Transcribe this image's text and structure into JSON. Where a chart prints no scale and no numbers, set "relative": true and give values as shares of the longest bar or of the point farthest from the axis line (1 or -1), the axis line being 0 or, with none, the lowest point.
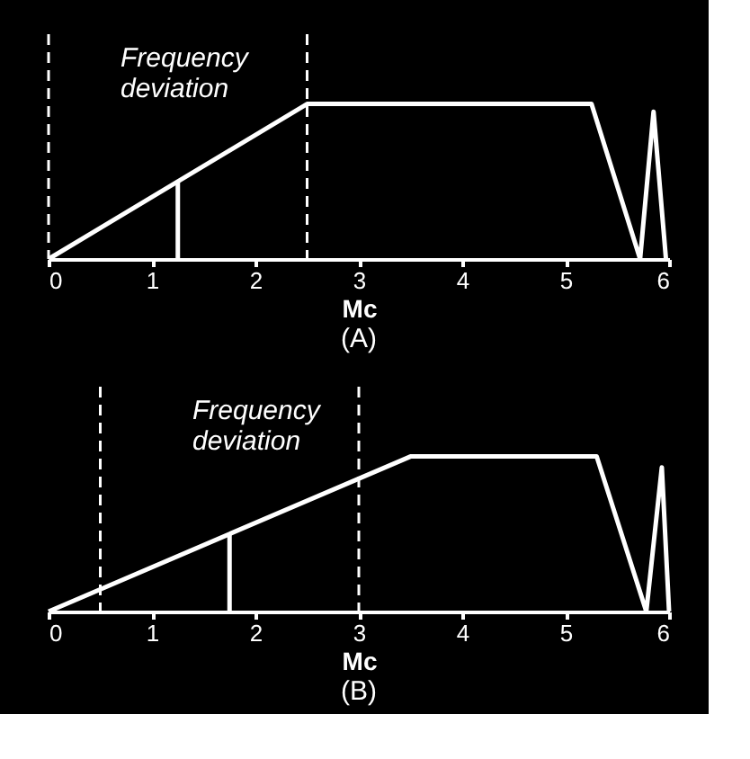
{
  "chart_data": [
    {
      "type": "line",
      "title": "(A)",
      "xlabel": "Mc",
      "xlim": [
        0,
        6
      ],
      "xticks": [
        0,
        1,
        2,
        3,
        4,
        5,
        6
      ],
      "relative": true,
      "grid": false,
      "annotations": [
        "Frequency deviation"
      ],
      "series": [
        {
          "color": "#ffffff",
          "x": [
            0,
            2.5,
            5.25,
            5.72,
            5.85,
            5.97
          ],
          "values": [
            0,
            1,
            1,
            0,
            0.95,
            0
          ]
        },
        {
          "color": "#ffffff",
          "x": [
            1.25,
            1.25
          ],
          "values": [
            0,
            0.5
          ]
        }
      ],
      "ref_lines": [
        {
          "axis": "x",
          "value": 0,
          "color": "#ffffff",
          "line_style": "dashed"
        },
        {
          "axis": "x",
          "value": 2.5,
          "color": "#ffffff",
          "line_style": "dashed"
        }
      ]
    },
    {
      "type": "line",
      "title": "(B)",
      "xlabel": "Mc",
      "xlim": [
        0,
        6
      ],
      "xticks": [
        0,
        1,
        2,
        3,
        4,
        5,
        6
      ],
      "relative": true,
      "grid": false,
      "annotations": [
        "Frequency deviation"
      ],
      "series": [
        {
          "color": "#ffffff",
          "x": [
            0,
            3.5,
            5.3,
            5.78,
            5.93,
            6
          ],
          "values": [
            0,
            1,
            1,
            0,
            0.93,
            0
          ]
        },
        {
          "color": "#ffffff",
          "x": [
            1.75,
            1.75
          ],
          "values": [
            0,
            0.5
          ]
        }
      ],
      "ref_lines": [
        {
          "axis": "x",
          "value": 0.5,
          "color": "#ffffff",
          "line_style": "dashed"
        },
        {
          "axis": "x",
          "value": 3,
          "color": "#ffffff",
          "line_style": "dashed"
        }
      ]
    }
  ]
}
